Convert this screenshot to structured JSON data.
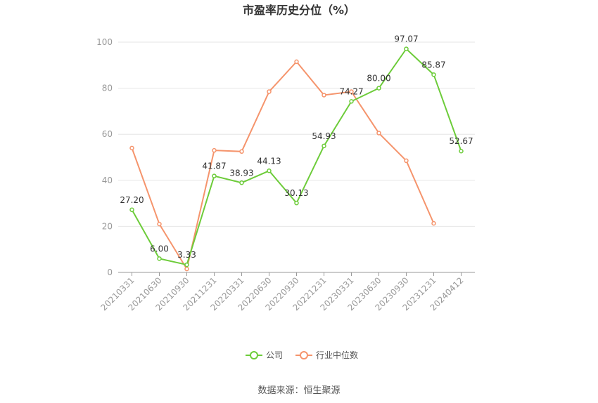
{
  "chart_data": {
    "type": "line",
    "title": "市盈率历史分位（%）",
    "xlabel": "",
    "ylabel": "",
    "ylim": [
      0,
      100
    ],
    "yticks": [
      0,
      20,
      40,
      60,
      80,
      100
    ],
    "grid": true,
    "legend_position": "bottom",
    "categories": [
      "20210331",
      "20210630",
      "20210930",
      "20211231",
      "20220331",
      "20220630",
      "20220930",
      "20221231",
      "20230331",
      "20230630",
      "20230930",
      "20231231",
      "20240412"
    ],
    "series": [
      {
        "name": "公司",
        "color": "#6dcc3a",
        "values": [
          27.2,
          6.0,
          3.33,
          41.87,
          38.93,
          44.13,
          30.13,
          54.93,
          74.27,
          80.0,
          97.07,
          85.87,
          52.67
        ],
        "labels": [
          "27.20",
          "6.00",
          "3.33",
          "41.87",
          "38.93",
          "44.13",
          "30.13",
          "54.93",
          "74.27",
          "80.00",
          "97.07",
          "85.87",
          "52.67"
        ]
      },
      {
        "name": "行业中位数",
        "color": "#f5946c",
        "values": [
          54.0,
          21.0,
          1.5,
          53.0,
          52.5,
          78.5,
          91.5,
          77.0,
          78.5,
          60.5,
          48.5,
          21.3,
          null
        ]
      }
    ]
  },
  "source": "数据来源：恒生聚源"
}
